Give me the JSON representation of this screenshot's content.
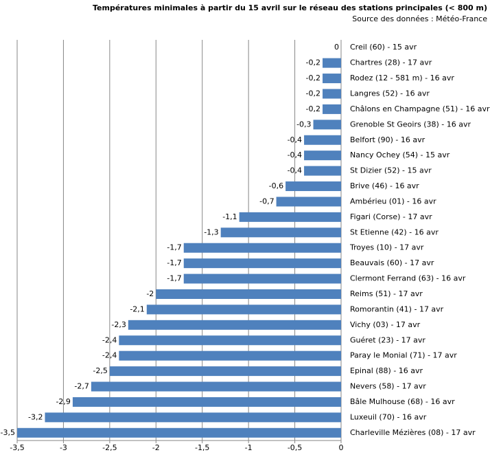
{
  "chart_data": {
    "type": "bar",
    "orientation": "horizontal",
    "title": "Températures minimales à partir du 15 avril sur le réseau des stations principales (< 800 m)",
    "subtitle": "Source des données : Météo-France",
    "categories": [
      "Creil (60) - 15 avr",
      "Chartres (28) - 17 avr",
      "Rodez (12 - 581 m) - 16 avr",
      "Langres (52) - 16 avr",
      "Châlons en Champagne (51) - 16 avr",
      "Grenoble St Geoirs (38) - 16 avr",
      "Belfort (90) - 16 avr",
      "Nancy Ochey (54) - 15 avr",
      "St Dizier (52) - 15 avr",
      "Brive (46) - 16 avr",
      "Ambérieu (01) - 16 avr",
      "Figari (Corse) - 17 avr",
      "St Etienne (42) - 16 avr",
      "Troyes (10) - 17 avr",
      "Beauvais (60) - 17 avr",
      "Clermont Ferrand (63) - 16 avr",
      "Reims (51) - 17 avr",
      "Romorantin (41) - 17 avr",
      "Vichy (03) - 17 avr",
      "Guéret (23) - 17 avr",
      "Paray le Monial (71) - 17 avr",
      "Epinal (88) - 16 avr",
      "Nevers (58) - 17 avr",
      "Bâle Mulhouse (68) - 16 avr",
      "Luxeuil (70) - 16 avr",
      "Charleville Mézières (08) - 17 avr"
    ],
    "values": [
      0,
      -0.2,
      -0.2,
      -0.2,
      -0.2,
      -0.3,
      -0.4,
      -0.4,
      -0.4,
      -0.6,
      -0.7,
      -1.1,
      -1.3,
      -1.7,
      -1.7,
      -1.7,
      -2,
      -2.1,
      -2.3,
      -2.4,
      -2.4,
      -2.5,
      -2.7,
      -2.9,
      -3.2,
      -3.5
    ],
    "value_labels": [
      "0",
      "-0,2",
      "-0,2",
      "-0,2",
      "-0,2",
      "-0,3",
      "-0,4",
      "-0,4",
      "-0,4",
      "-0,6",
      "-0,7",
      "-1,1",
      "-1,3",
      "-1,7",
      "-1,7",
      "-1,7",
      "-2",
      "-2,1",
      "-2,3",
      "-2,4",
      "-2,4",
      "-2,5",
      "-2,7",
      "-2,9",
      "-3,2",
      "-3,5"
    ],
    "color": "#4f81bd",
    "xlim": [
      -3.5,
      0
    ],
    "xticks": [
      {
        "value": -3.5,
        "label": "-3,5"
      },
      -3,
      {
        "value": -2.5,
        "label": "-2,5"
      },
      -2,
      {
        "value": -1.5,
        "label": "-1,5"
      },
      -1,
      {
        "value": -0.5,
        "label": "-0,5"
      },
      0
    ],
    "grid": true
  }
}
